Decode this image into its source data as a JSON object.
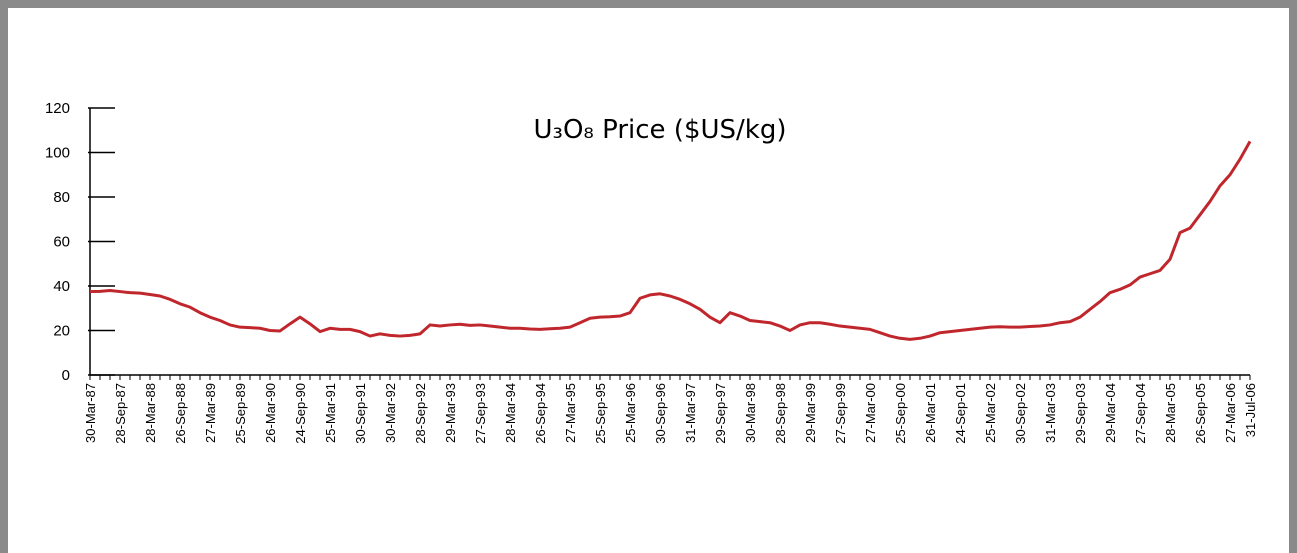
{
  "chart_data": {
    "type": "line",
    "title": "U₃O₈ Price ($US/kg)",
    "categories": [
      "30-Mar-87",
      null,
      null,
      "28-Sep-87",
      null,
      null,
      "28-Mar-88",
      null,
      null,
      "26-Sep-88",
      null,
      null,
      "27-Mar-89",
      null,
      null,
      "25-Sep-89",
      null,
      null,
      "26-Mar-90",
      null,
      null,
      "24-Sep-90",
      null,
      null,
      "25-Mar-91",
      null,
      null,
      "30-Sep-91",
      null,
      null,
      "30-Mar-92",
      null,
      null,
      "28-Sep-92",
      null,
      null,
      "29-Mar-93",
      null,
      null,
      "27-Sep-93",
      null,
      null,
      "28-Mar-94",
      null,
      null,
      "26-Sep-94",
      null,
      null,
      "27-Mar-95",
      null,
      null,
      "25-Sep-95",
      null,
      null,
      "25-Mar-96",
      null,
      null,
      "30-Sep-96",
      null,
      null,
      "31-Mar-97",
      null,
      null,
      "29-Sep-97",
      null,
      null,
      "30-Mar-98",
      null,
      null,
      "28-Sep-98",
      null,
      null,
      "29-Mar-99",
      null,
      null,
      "27-Sep-99",
      null,
      null,
      "27-Mar-00",
      null,
      null,
      "25-Sep-00",
      null,
      null,
      "26-Mar-01",
      null,
      null,
      "24-Sep-01",
      null,
      null,
      "25-Mar-02",
      null,
      null,
      "30-Sep-02",
      null,
      null,
      "31-Mar-03",
      null,
      null,
      "29-Sep-03",
      null,
      null,
      "29-Mar-04",
      null,
      null,
      "27-Sep-04",
      null,
      null,
      "28-Mar-05",
      null,
      null,
      "26-Sep-05",
      null,
      null,
      "27-Mar-06",
      null,
      "31-Jul-06"
    ],
    "values": [
      37.5,
      37.6,
      38,
      37.5,
      37,
      36.8,
      36.2,
      35.5,
      34,
      32,
      30.5,
      28,
      26,
      24.5,
      22.5,
      21.5,
      21.3,
      21,
      20,
      19.8,
      23,
      26,
      23,
      19.5,
      21,
      20.5,
      20.5,
      19.5,
      17.5,
      18.5,
      17.8,
      17.5,
      17.8,
      18.5,
      22.5,
      22,
      22.5,
      22.8,
      22.3,
      22.5,
      22,
      21.5,
      21,
      21,
      20.7,
      20.5,
      20.8,
      21,
      21.5,
      23.5,
      25.5,
      26,
      26.2,
      26.5,
      28,
      34.5,
      36,
      36.5,
      35.5,
      34,
      32,
      29.5,
      26,
      23.5,
      28,
      26.5,
      24.5,
      24,
      23.5,
      22,
      20,
      22.5,
      23.5,
      23.5,
      22.8,
      22,
      21.5,
      21,
      20.5,
      19,
      17.5,
      16.5,
      16,
      16.5,
      17.5,
      19,
      19.5,
      20,
      20.5,
      21,
      21.5,
      21.7,
      21.5,
      21.5,
      21.8,
      22,
      22.5,
      23.5,
      24,
      26,
      29.5,
      33,
      37,
      38.5,
      40.5,
      44,
      45.5,
      47,
      52,
      64,
      66,
      72,
      78,
      85,
      90,
      97,
      105
    ],
    "color": "#c0272d",
    "ylim": [
      0,
      120
    ],
    "yticks": [
      0,
      20,
      40,
      60,
      80,
      100,
      120
    ]
  }
}
